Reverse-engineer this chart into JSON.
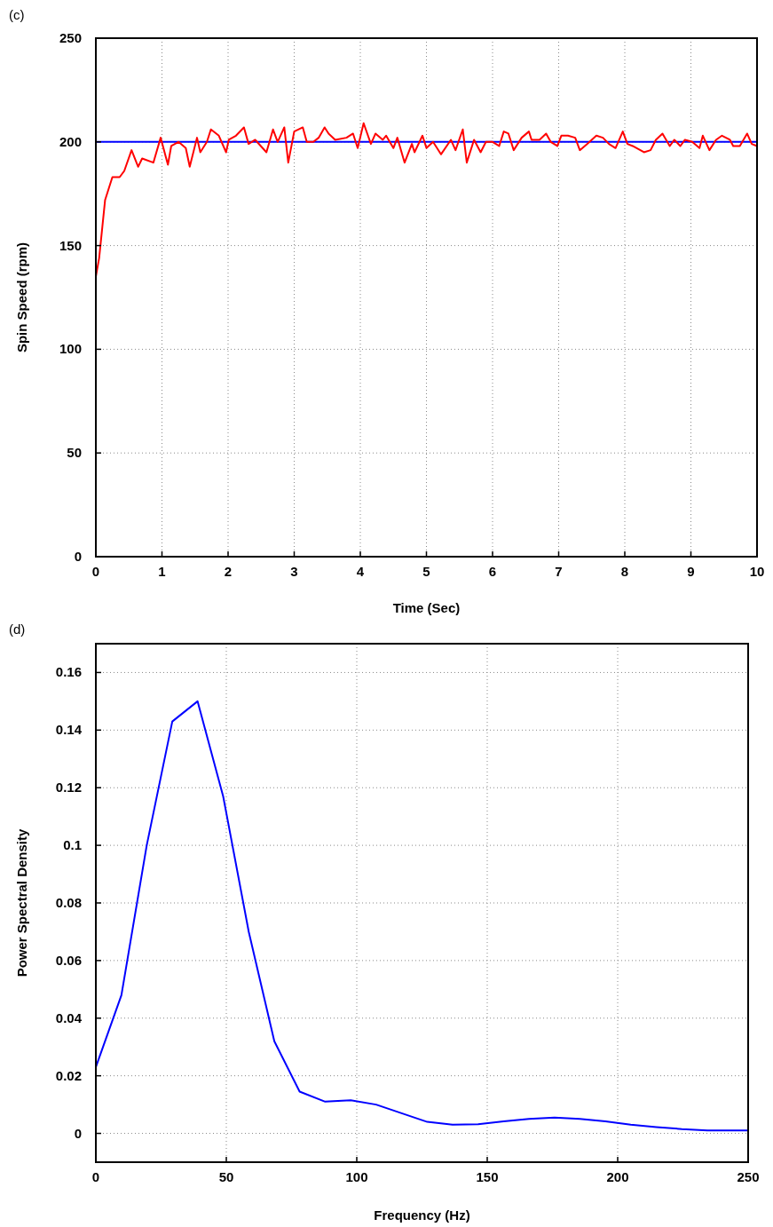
{
  "chart_data": [
    {
      "type": "line",
      "title": "(c)",
      "xlabel": "Time (Sec)",
      "ylabel": "Spin Speed (rpm)",
      "xlim": [
        0,
        10
      ],
      "ylim": [
        0,
        250
      ],
      "xticks": [
        0,
        1,
        2,
        3,
        4,
        5,
        6,
        7,
        8,
        9,
        10
      ],
      "yticks": [
        0,
        50,
        100,
        150,
        200,
        250
      ],
      "grid": true,
      "line_style": "solid",
      "ref_lines": [
        {
          "axis": "y",
          "value": 200,
          "color": "#0000ff"
        }
      ],
      "series": [
        {
          "color": "#ff0000",
          "x": [
            0,
            0.05,
            0.14,
            0.25,
            0.36,
            0.43,
            0.54,
            0.64,
            0.7,
            0.87,
            0.98,
            1.09,
            1.14,
            1.25,
            1.36,
            1.42,
            1.53,
            1.58,
            1.68,
            1.74,
            1.86,
            1.97,
            2.01,
            2.12,
            2.24,
            2.31,
            2.41,
            2.58,
            2.68,
            2.75,
            2.85,
            2.91,
            3.0,
            3.13,
            3.19,
            3.29,
            3.37,
            3.46,
            3.52,
            3.62,
            3.79,
            3.89,
            3.96,
            4.05,
            4.16,
            4.23,
            4.34,
            4.39,
            4.5,
            4.56,
            4.67,
            4.78,
            4.82,
            4.94,
            5.0,
            5.1,
            5.22,
            5.37,
            5.44,
            5.55,
            5.61,
            5.72,
            5.82,
            5.9,
            6.0,
            6.1,
            6.17,
            6.24,
            6.32,
            6.44,
            6.55,
            6.59,
            6.71,
            6.81,
            6.88,
            6.98,
            7.04,
            7.14,
            7.25,
            7.32,
            7.43,
            7.57,
            7.67,
            7.76,
            7.86,
            7.97,
            8.04,
            8.12,
            8.29,
            8.39,
            8.47,
            8.57,
            8.68,
            8.75,
            8.84,
            8.91,
            9.02,
            9.13,
            9.18,
            9.28,
            9.38,
            9.47,
            9.59,
            9.64,
            9.74,
            9.85,
            9.92,
            10
          ],
          "values": [
            135,
            144,
            172,
            183,
            183,
            186,
            196,
            188,
            192,
            190,
            202,
            189,
            198,
            200,
            197,
            188,
            202,
            195,
            200,
            206,
            203,
            195,
            201,
            203,
            207,
            199,
            201,
            195,
            206,
            200,
            207,
            190,
            205,
            207,
            200,
            200,
            202,
            207,
            204,
            201,
            202,
            204,
            197,
            209,
            199,
            204,
            201,
            203,
            197,
            202,
            190,
            199,
            195,
            203,
            197,
            200,
            194,
            201,
            196,
            206,
            190,
            201,
            195,
            200,
            200,
            198,
            205,
            204,
            196,
            202,
            205,
            201,
            201,
            204,
            200,
            198,
            203,
            203,
            202,
            196,
            199,
            203,
            202,
            199,
            197,
            205,
            199,
            198,
            195,
            196,
            201,
            204,
            198,
            201,
            198,
            201,
            200,
            197,
            203,
            196,
            201,
            203,
            201,
            198,
            198,
            204,
            199,
            198
          ]
        }
      ]
    },
    {
      "type": "line",
      "title": "(d)",
      "xlabel": "Frequency (Hz)",
      "ylabel": "Power Spectral Density",
      "xlim": [
        0,
        250
      ],
      "ylim": [
        -0.01,
        0.17
      ],
      "xticks": [
        0,
        50,
        100,
        150,
        200,
        250
      ],
      "yticks": [
        0,
        0.02,
        0.04,
        0.06,
        0.08,
        0.1,
        0.12,
        0.14,
        0.16
      ],
      "grid": true,
      "line_style": "solid",
      "series": [
        {
          "color": "#0000ff",
          "x": [
            0,
            9.8,
            19.5,
            29.3,
            39,
            48.8,
            58.6,
            68.4,
            78.1,
            87.9,
            97.7,
            107.4,
            117.2,
            127,
            136.7,
            146.5,
            156.3,
            166,
            175.8,
            185.5,
            195.3,
            205,
            214.8,
            224.6,
            234.4,
            244.1,
            250
          ],
          "values": [
            0.023,
            0.048,
            0.1,
            0.143,
            0.15,
            0.117,
            0.07,
            0.032,
            0.0145,
            0.011,
            0.0115,
            0.01,
            0.007,
            0.004,
            0.003,
            0.0032,
            0.0042,
            0.005,
            0.0055,
            0.005,
            0.0042,
            0.003,
            0.0022,
            0.0015,
            0.001,
            0.001,
            0.001
          ]
        }
      ]
    }
  ]
}
